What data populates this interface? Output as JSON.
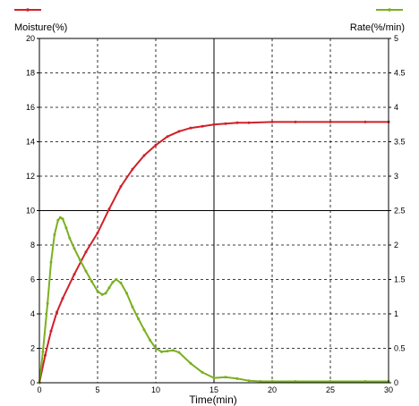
{
  "chart_data": {
    "type": "line",
    "xlabel": "Time(min)",
    "ylabel_left": "Moisture(%)",
    "ylabel_right": "Rate(%/min)",
    "xlim": [
      0,
      30
    ],
    "ylim_left": [
      0,
      20
    ],
    "ylim_right": [
      0,
      5
    ],
    "x_ticks": [
      "0",
      "5",
      "10",
      "15",
      "20",
      "25",
      "30"
    ],
    "y_left_ticks": [
      "0",
      "2",
      "4",
      "6",
      "8",
      "10",
      "12",
      "14",
      "16",
      "18",
      "20"
    ],
    "y_right_ticks": [
      "0",
      "0.5",
      "1",
      "1.5",
      "2",
      "2.5",
      "3",
      "3.5",
      "4",
      "4.5",
      "5"
    ],
    "grid": true,
    "legend": "top, line markers only",
    "series": [
      {
        "axis": "left",
        "color": "#d0202a",
        "x": [
          0,
          0.5,
          1,
          1.5,
          2,
          3,
          4,
          5,
          6,
          7,
          8,
          9,
          10,
          11,
          12,
          13,
          14,
          15,
          16,
          17,
          18,
          20,
          22,
          25,
          28,
          30
        ],
        "values": [
          0,
          1.6,
          3.0,
          4.1,
          4.9,
          6.3,
          7.6,
          8.7,
          10.1,
          11.4,
          12.4,
          13.2,
          13.8,
          14.3,
          14.6,
          14.8,
          14.9,
          15.0,
          15.05,
          15.1,
          15.1,
          15.15,
          15.15,
          15.15,
          15.15,
          15.15
        ]
      },
      {
        "axis": "right",
        "color": "#7ab020",
        "x": [
          0,
          0.3,
          0.7,
          1.0,
          1.3,
          1.6,
          1.8,
          2.0,
          2.3,
          2.6,
          3.0,
          3.5,
          4.0,
          4.5,
          5.0,
          5.4,
          5.7,
          6.0,
          6.3,
          6.6,
          7.0,
          7.5,
          8.0,
          8.5,
          9.0,
          9.5,
          10.0,
          10.5,
          11.0,
          11.5,
          12.0,
          13.0,
          14.0,
          15.0,
          16.0,
          17.0,
          18.0,
          19.0,
          20.0,
          22.0,
          25.0,
          28.0,
          30.0
        ],
        "values": [
          0,
          0.45,
          1.15,
          1.75,
          2.15,
          2.36,
          2.4,
          2.38,
          2.25,
          2.1,
          1.95,
          1.78,
          1.62,
          1.47,
          1.33,
          1.28,
          1.3,
          1.38,
          1.46,
          1.5,
          1.45,
          1.3,
          1.1,
          0.93,
          0.77,
          0.62,
          0.5,
          0.45,
          0.46,
          0.47,
          0.44,
          0.28,
          0.15,
          0.07,
          0.08,
          0.06,
          0.03,
          0.02,
          0.02,
          0.02,
          0.02,
          0.02,
          0.02
        ]
      }
    ]
  }
}
